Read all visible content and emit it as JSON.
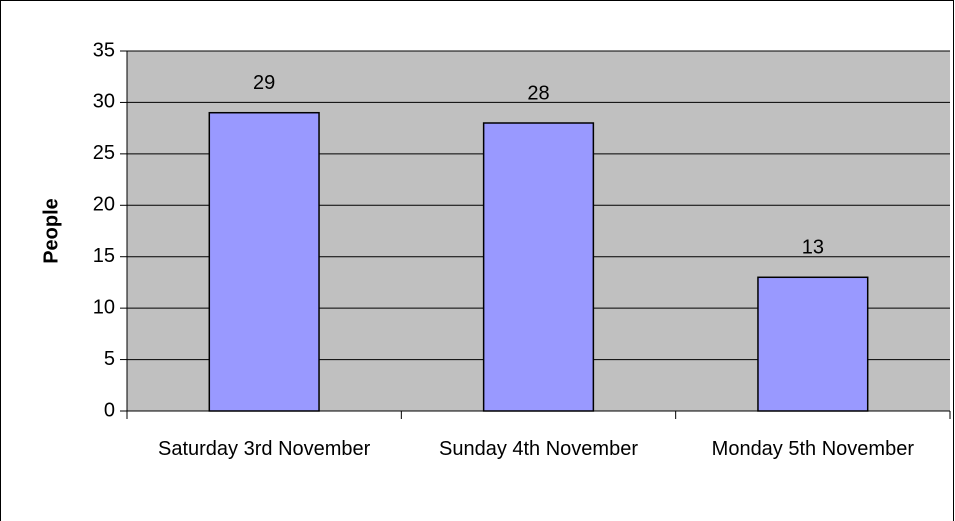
{
  "chart_data": {
    "type": "bar",
    "y_label": "People",
    "categories": [
      "Saturday 3rd November",
      "Sunday 4th November",
      "Monday 5th November"
    ],
    "values": [
      29,
      28,
      13
    ],
    "color": "#9999ff",
    "plot_background": "#c0c0c0",
    "ylim": [
      0,
      35
    ],
    "yticks": [
      0,
      5,
      10,
      15,
      20,
      25,
      30,
      35
    ],
    "grid": true
  }
}
